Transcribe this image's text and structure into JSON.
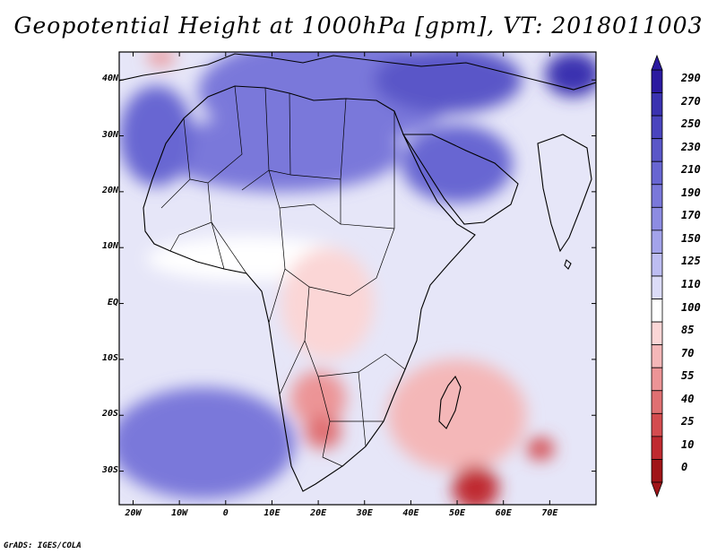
{
  "title": "Geopotential Height at 1000hPa [gpm], VT: 2018011003",
  "credit": "GrADS: IGES/COLA",
  "map": {
    "projection": "lat-lon",
    "region": "Africa and western Indian Ocean",
    "lon_range": [
      -23,
      80
    ],
    "lat_range": [
      -36,
      45
    ],
    "lat_ticks": [
      {
        "value": 40,
        "label": "40N"
      },
      {
        "value": 30,
        "label": "30N"
      },
      {
        "value": 20,
        "label": "20N"
      },
      {
        "value": 10,
        "label": "10N"
      },
      {
        "value": 0,
        "label": "EQ"
      },
      {
        "value": -10,
        "label": "10S"
      },
      {
        "value": -20,
        "label": "20S"
      },
      {
        "value": -30,
        "label": "30S"
      }
    ],
    "lon_ticks": [
      {
        "value": -20,
        "label": "20W"
      },
      {
        "value": -10,
        "label": "10W"
      },
      {
        "value": 0,
        "label": "0"
      },
      {
        "value": 10,
        "label": "10E"
      },
      {
        "value": 20,
        "label": "20E"
      },
      {
        "value": 30,
        "label": "30E"
      },
      {
        "value": 40,
        "label": "40E"
      },
      {
        "value": 50,
        "label": "50E"
      },
      {
        "value": 60,
        "label": "60E"
      },
      {
        "value": 70,
        "label": "70E"
      }
    ]
  },
  "colorbar": {
    "levels": [
      "290",
      "270",
      "250",
      "230",
      "210",
      "190",
      "170",
      "150",
      "125",
      "110",
      "100",
      "85",
      "70",
      "55",
      "40",
      "25",
      "10",
      "0"
    ],
    "colors": [
      "#2b1aa0",
      "#3a32b0",
      "#4a45be",
      "#5a57c8",
      "#6866d2",
      "#7a78da",
      "#8d8ce2",
      "#a3a3ea",
      "#bdbdf2",
      "#dcdcf8",
      "#ffffff",
      "#fbd6d6",
      "#f4b7b8",
      "#ec9496",
      "#e07072",
      "#d44c4f",
      "#c02a30",
      "#a01418"
    ]
  },
  "field_blobs": [
    {
      "name": "mediterranean-low-heights",
      "lon": 22,
      "lat": 38,
      "rx": 28,
      "ry": 10,
      "level": "190"
    },
    {
      "name": "east-med-low",
      "lon": 48,
      "lat": 40,
      "rx": 16,
      "ry": 6,
      "level": "230"
    },
    {
      "name": "far-ne-low",
      "lon": 75,
      "lat": 41,
      "rx": 6,
      "ry": 4,
      "level": "270"
    },
    {
      "name": "sahara-band",
      "lon": 12,
      "lat": 27,
      "rx": 26,
      "ry": 7,
      "level": "190"
    },
    {
      "name": "arabia-band",
      "lon": 50,
      "lat": 25,
      "rx": 12,
      "ry": 7,
      "level": "210"
    },
    {
      "name": "west-atlantic-high",
      "lon": -15,
      "lat": 30,
      "rx": 8,
      "ry": 9,
      "level": "210"
    },
    {
      "name": "nw-corner-low",
      "lon": -14,
      "lat": 44,
      "rx": 3,
      "ry": 1.5,
      "level": "55"
    },
    {
      "name": "sahel-pink",
      "lon": 5,
      "lat": 8,
      "rx": 22,
      "ry": 4,
      "level": "100"
    },
    {
      "name": "central-africa-pink",
      "lon": 22,
      "lat": 0,
      "rx": 10,
      "ry": 10,
      "level": "85"
    },
    {
      "name": "angola-low",
      "lon": 20,
      "lat": -17,
      "rx": 6,
      "ry": 5,
      "level": "55"
    },
    {
      "name": "kalahari-low",
      "lon": 21,
      "lat": -23,
      "rx": 4,
      "ry": 3,
      "level": "40"
    },
    {
      "name": "mozambique-channel-low",
      "lon": 50,
      "lat": -20,
      "rx": 15,
      "ry": 10,
      "level": "70"
    },
    {
      "name": "southern-ocean-low",
      "lon": 54,
      "lat": -33,
      "rx": 5,
      "ry": 4,
      "level": "10"
    },
    {
      "name": "indian-ocean-cell",
      "lon": 68,
      "lat": -26,
      "rx": 3,
      "ry": 2,
      "level": "25"
    },
    {
      "name": "south-atlantic-high",
      "lon": -5,
      "lat": -25,
      "rx": 20,
      "ry": 10,
      "level": "190"
    }
  ]
}
